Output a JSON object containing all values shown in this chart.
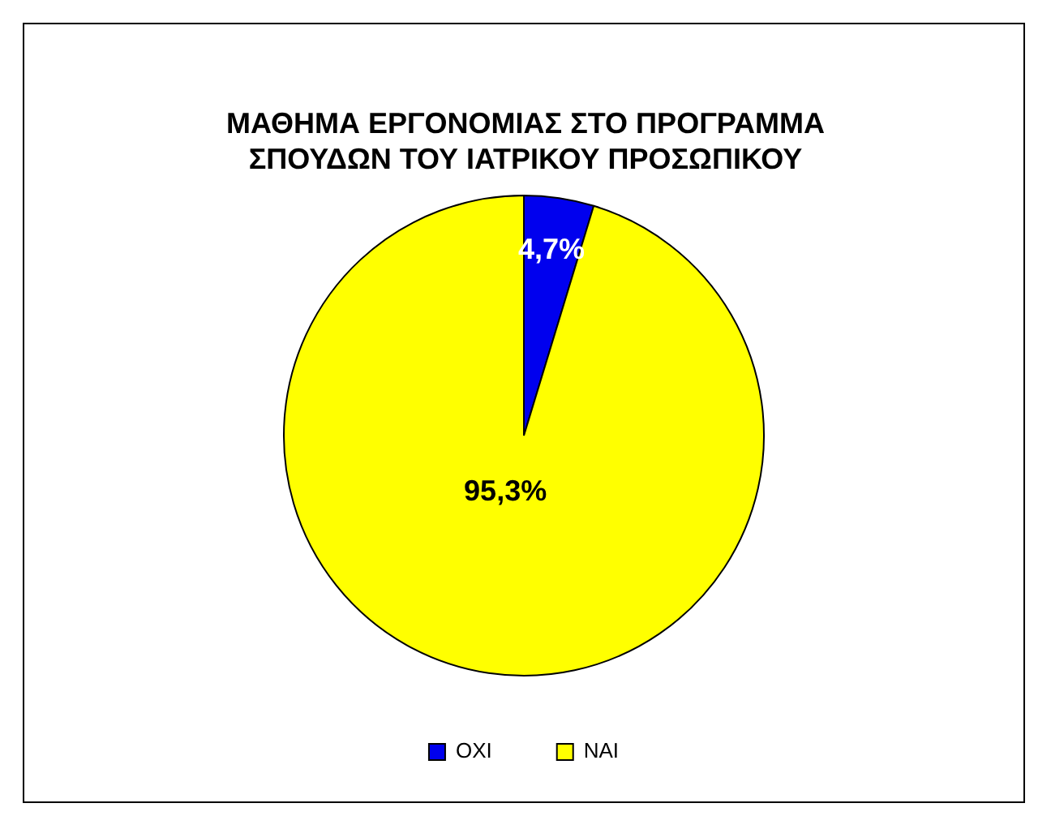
{
  "chart_data": {
    "type": "pie",
    "title": "ΜΑΘΗΜΑ ΕΡΓΟΝΟΜΙΑΣ ΣΤΟ ΠΡΟΓΡΑΜΜΑ ΣΠΟΥΔΩΝ ΤΟΥ ΙΑΤΡΙΚΟΥ ΠΡΟΣΩΠΙΚΟΥ",
    "categories": [
      "ΟΧΙ",
      "ΝΑΙ"
    ],
    "values": [
      4.7,
      95.3
    ],
    "colors": [
      "#0000ee",
      "#ffff00"
    ],
    "value_labels": [
      "4,7%",
      "95,3%"
    ],
    "legend": "bottom"
  }
}
